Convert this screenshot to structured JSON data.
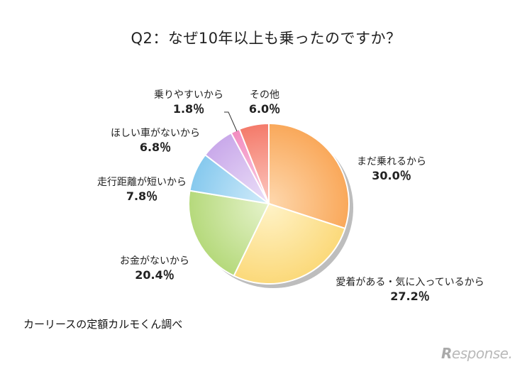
{
  "chart_data": {
    "type": "pie",
    "title": "Q2：なぜ10年以上も乗ったのですか？",
    "slices": [
      {
        "label": "まだ乗れるから",
        "value": 30.0,
        "value_label": "30.0％",
        "color": "#f9a85a",
        "color_light": "#fed8ae"
      },
      {
        "label": "愛着がある・気に入っているから",
        "value": 27.2,
        "value_label": "27.2％",
        "color": "#fbd97a",
        "color_light": "#fff3c8"
      },
      {
        "label": "お金がないから",
        "value": 20.4,
        "value_label": "20.4％",
        "color": "#b5d97b",
        "color_light": "#e6f3cc"
      },
      {
        "label": "走行距離が短いから",
        "value": 7.8,
        "value_label": "7.8％",
        "color": "#86c9ee",
        "color_light": "#d3ecfa"
      },
      {
        "label": "ほしい車がないから",
        "value": 6.8,
        "value_label": "6.8％",
        "color": "#c9a9ea",
        "color_light": "#ece0f8"
      },
      {
        "label": "乗りやすいから",
        "value": 1.8,
        "value_label": "1.8％",
        "color": "#f28cc0",
        "color_light": "#fbd3e7"
      },
      {
        "label": "その他",
        "value": 6.0,
        "value_label": "6.0％",
        "color": "#f47a6a",
        "color_light": "#fcc9c1"
      }
    ]
  },
  "source": "カーリースの定額カルモくん調べ",
  "logo": {
    "mark": "R",
    "text": "esponse."
  }
}
